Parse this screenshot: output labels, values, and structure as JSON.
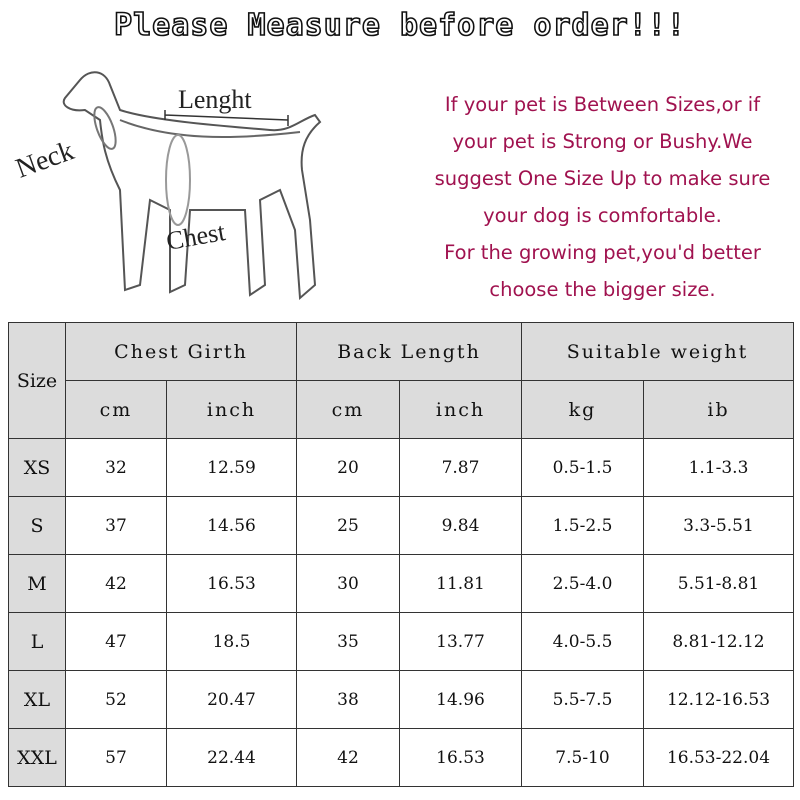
{
  "title": "Please Measure before order!!!",
  "diagram": {
    "length_label": "Lenght",
    "neck_label": "Neck",
    "chest_label": "Chest"
  },
  "note_lines": [
    "If your pet is Between Sizes,or if",
    "your pet is Strong or Bushy.We",
    "suggest One Size Up to make sure",
    "your dog is comfortable.",
    "For the growing pet,you'd better",
    "choose the bigger size."
  ],
  "colors": {
    "note": "#a0124f",
    "header_bg": "#dcdcdc"
  },
  "table": {
    "size_header": "Size",
    "groups": [
      "Chest Girth",
      "Back Length",
      "Suitable weight"
    ],
    "units": [
      "cm",
      "inch",
      "cm",
      "inch",
      "kg",
      "ib"
    ],
    "rows": [
      [
        "XS",
        "32",
        "12.59",
        "20",
        "7.87",
        "0.5-1.5",
        "1.1-3.3"
      ],
      [
        "S",
        "37",
        "14.56",
        "25",
        "9.84",
        "1.5-2.5",
        "3.3-5.51"
      ],
      [
        "M",
        "42",
        "16.53",
        "30",
        "11.81",
        "2.5-4.0",
        "5.51-8.81"
      ],
      [
        "L",
        "47",
        "18.5",
        "35",
        "13.77",
        "4.0-5.5",
        "8.81-12.12"
      ],
      [
        "XL",
        "52",
        "20.47",
        "38",
        "14.96",
        "5.5-7.5",
        "12.12-16.53"
      ],
      [
        "XXL",
        "57",
        "22.44",
        "42",
        "16.53",
        "7.5-10",
        "16.53-22.04"
      ]
    ]
  }
}
